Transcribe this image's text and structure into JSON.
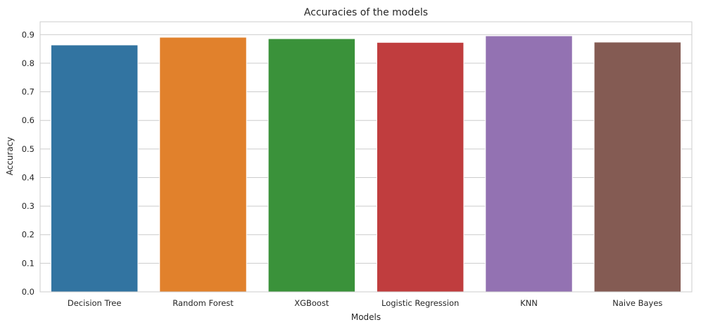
{
  "chart_data": {
    "type": "bar",
    "title": "Accuracies of the models",
    "xlabel": "Models",
    "ylabel": "Accuracy",
    "categories": [
      "Decision Tree",
      "Random Forest",
      "XGBoost",
      "Logistic Regression",
      "KNN",
      "Naive Bayes"
    ],
    "values": [
      0.864,
      0.891,
      0.886,
      0.873,
      0.896,
      0.874
    ],
    "colors": [
      "#3274a1",
      "#e1812c",
      "#3a923a",
      "#c03d3e",
      "#9372b2",
      "#845b53"
    ],
    "ylim": [
      0,
      0.945
    ],
    "yticks": [
      0.0,
      0.1,
      0.2,
      0.3,
      0.4,
      0.5,
      0.6,
      0.7,
      0.8,
      0.9
    ],
    "ytick_labels": [
      "0.0",
      "0.1",
      "0.2",
      "0.3",
      "0.4",
      "0.5",
      "0.6",
      "0.7",
      "0.8",
      "0.9"
    ],
    "grid": true
  }
}
